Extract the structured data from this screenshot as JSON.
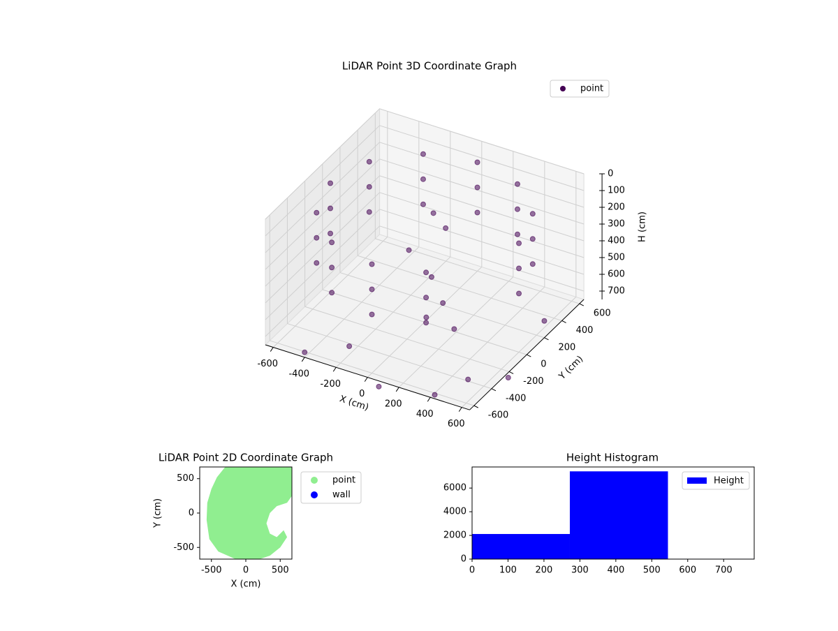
{
  "chart_data": [
    {
      "type": "scatter3d",
      "title": "LiDAR Point 3D Coordinate Graph",
      "x_label": "X (cm)",
      "y_label": "Y (cm)",
      "z_label": "H (cm)",
      "xlim": [
        -650,
        650
      ],
      "ylim": [
        -650,
        650
      ],
      "zlim": [
        750,
        0
      ],
      "xticks": [
        -600,
        -400,
        -200,
        0,
        200,
        400,
        600
      ],
      "yticks": [
        -600,
        -400,
        -200,
        0,
        200,
        400,
        600
      ],
      "zticks": [
        0,
        100,
        200,
        300,
        400,
        500,
        600,
        700
      ],
      "grid": true,
      "legend": "upper right",
      "series": [
        {
          "name": "point",
          "color": "#440154",
          "x": [
            300,
            0,
            -300,
            -520,
            -600,
            -520,
            -300,
            0,
            300,
            520,
            600,
            300,
            0,
            -300,
            -520,
            -600,
            -520,
            -300,
            0,
            300,
            520,
            600,
            300,
            0,
            -300,
            -520,
            -600,
            -520,
            -300,
            0,
            300,
            520,
            600,
            0,
            50,
            -100,
            100,
            200,
            150,
            300,
            -200,
            100,
            400,
            500,
            -400,
            650,
            700
          ],
          "y": [
            520,
            600,
            520,
            300,
            0,
            -300,
            -520,
            -600,
            -520,
            300,
            0,
            520,
            600,
            520,
            300,
            0,
            -300,
            -520,
            -600,
            -520,
            300,
            0,
            520,
            600,
            520,
            300,
            0,
            -300,
            -520,
            -600,
            -520,
            300,
            0,
            100,
            150,
            0,
            -100,
            -150,
            -250,
            -200,
            -500,
            -700,
            -600,
            -400,
            -650,
            200,
            -300
          ],
          "z": [
            100,
            100,
            100,
            100,
            100,
            100,
            100,
            100,
            100,
            100,
            100,
            250,
            250,
            250,
            250,
            250,
            250,
            250,
            250,
            250,
            250,
            250,
            400,
            400,
            400,
            400,
            400,
            400,
            400,
            400,
            400,
            400,
            400,
            150,
            250,
            350,
            400,
            500,
            550,
            600,
            700,
            750,
            760,
            740,
            720,
            650,
            720
          ]
        }
      ]
    },
    {
      "type": "scatter",
      "title": "LiDAR Point 2D Coordinate Graph",
      "x_label": "X (cm)",
      "y_label": "Y (cm)",
      "xlim": [
        -670,
        670
      ],
      "ylim": [
        -670,
        670
      ],
      "xticks": [
        -500,
        0,
        500
      ],
      "yticks": [
        -500,
        0,
        500
      ],
      "legend": "outside upper right",
      "series": [
        {
          "name": "point",
          "color": "#90ee90",
          "x": [
            -300,
            670,
            670,
            600,
            450,
            350,
            300,
            350,
            450,
            550,
            600,
            500,
            350,
            200,
            -150,
            -400,
            -530,
            -570,
            -560,
            -500,
            -420
          ],
          "y": [
            670,
            670,
            250,
            150,
            100,
            0,
            -150,
            -300,
            -350,
            -250,
            -350,
            -500,
            -620,
            -670,
            -670,
            -560,
            -380,
            -100,
            150,
            350,
            520
          ]
        },
        {
          "name": "wall",
          "color": "#0000ff",
          "x": [],
          "y": []
        }
      ]
    },
    {
      "type": "histogram",
      "title": "Height Histogram",
      "name": "Height",
      "color": "#0000ff",
      "bins": [
        0,
        272,
        545,
        817
      ],
      "values": [
        2120,
        7410,
        30
      ],
      "xlim": [
        0,
        785
      ],
      "ylim": [
        0,
        7780
      ],
      "xticks": [
        0,
        100,
        200,
        300,
        400,
        500,
        600,
        700
      ],
      "yticks": [
        0,
        2000,
        4000,
        6000
      ],
      "legend": "upper right"
    }
  ]
}
